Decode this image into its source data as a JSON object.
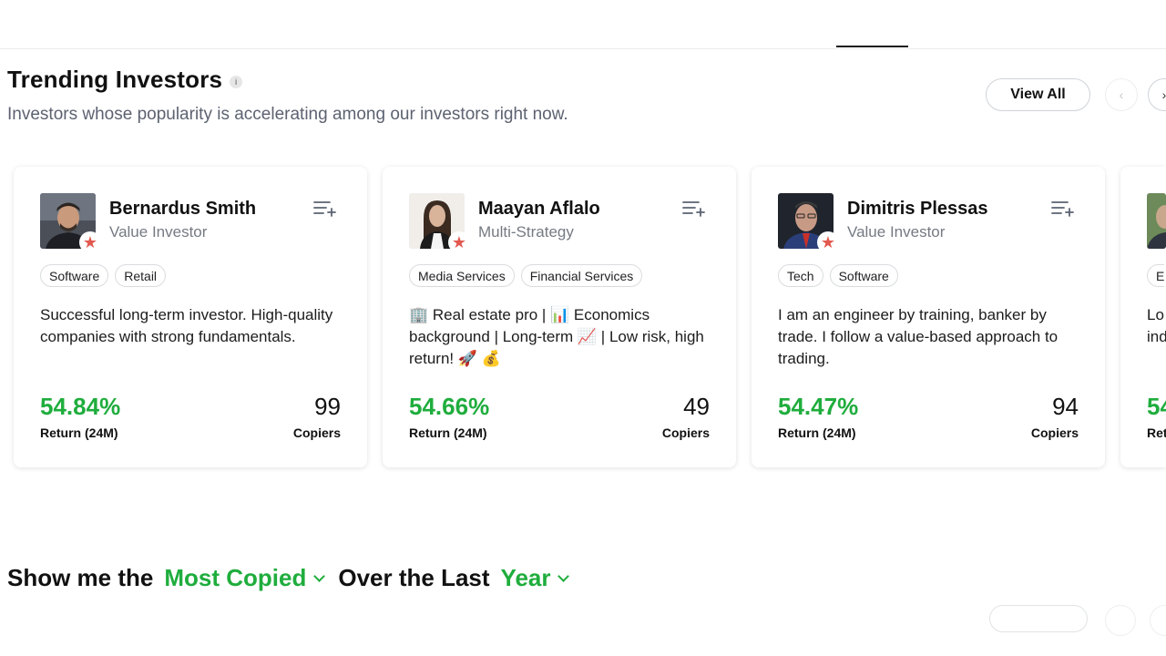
{
  "section": {
    "title": "Trending Investors",
    "info_icon": "i",
    "subtitle": "Investors whose popularity is accelerating among our investors right now.",
    "view_all_label": "View All",
    "prev_icon": "‹",
    "next_icon": "›"
  },
  "investors": [
    {
      "name": "Bernardus Smith",
      "strategy": "Value Investor",
      "tags": [
        "Software",
        "Retail"
      ],
      "bio": "Successful long-term investor. High-quality companies with strong fundamentals.",
      "return_value": "54.84%",
      "return_label": "Return (24M)",
      "copiers_value": "99",
      "copiers_label": "Copiers"
    },
    {
      "name": "Maayan Aflalo",
      "strategy": "Multi-Strategy",
      "tags": [
        "Media Services",
        "Financial Services"
      ],
      "bio": "🏢 Real estate pro | 📊 Economics background | Long-term 📈 | Low risk, high return! 🚀 💰",
      "return_value": "54.66%",
      "return_label": "Return (24M)",
      "copiers_value": "49",
      "copiers_label": "Copiers"
    },
    {
      "name": "Dimitris Plessas",
      "strategy": "Value Investor",
      "tags": [
        "Tech",
        "Software"
      ],
      "bio": "I am an engineer by training, banker by trade. I follow a value-based approach to trading.",
      "return_value": "54.47%",
      "return_label": "Return (24M)",
      "copiers_value": "94",
      "copiers_label": "Copiers"
    },
    {
      "name": "",
      "strategy": "",
      "tags": [
        "E"
      ],
      "bio": "Lo ind",
      "return_value": "54",
      "return_label": "Ret",
      "copiers_value": "",
      "copiers_label": ""
    }
  ],
  "filter": {
    "prefix": "Show me the",
    "metric": "Most Copied",
    "middle": "Over the Last",
    "period": "Year"
  },
  "colors": {
    "accent_green": "#1fad3d",
    "star_red": "#e2594f",
    "text_gray": "#5c6270"
  },
  "icons": {
    "star": "★",
    "watchlist": "list-plus-icon"
  }
}
